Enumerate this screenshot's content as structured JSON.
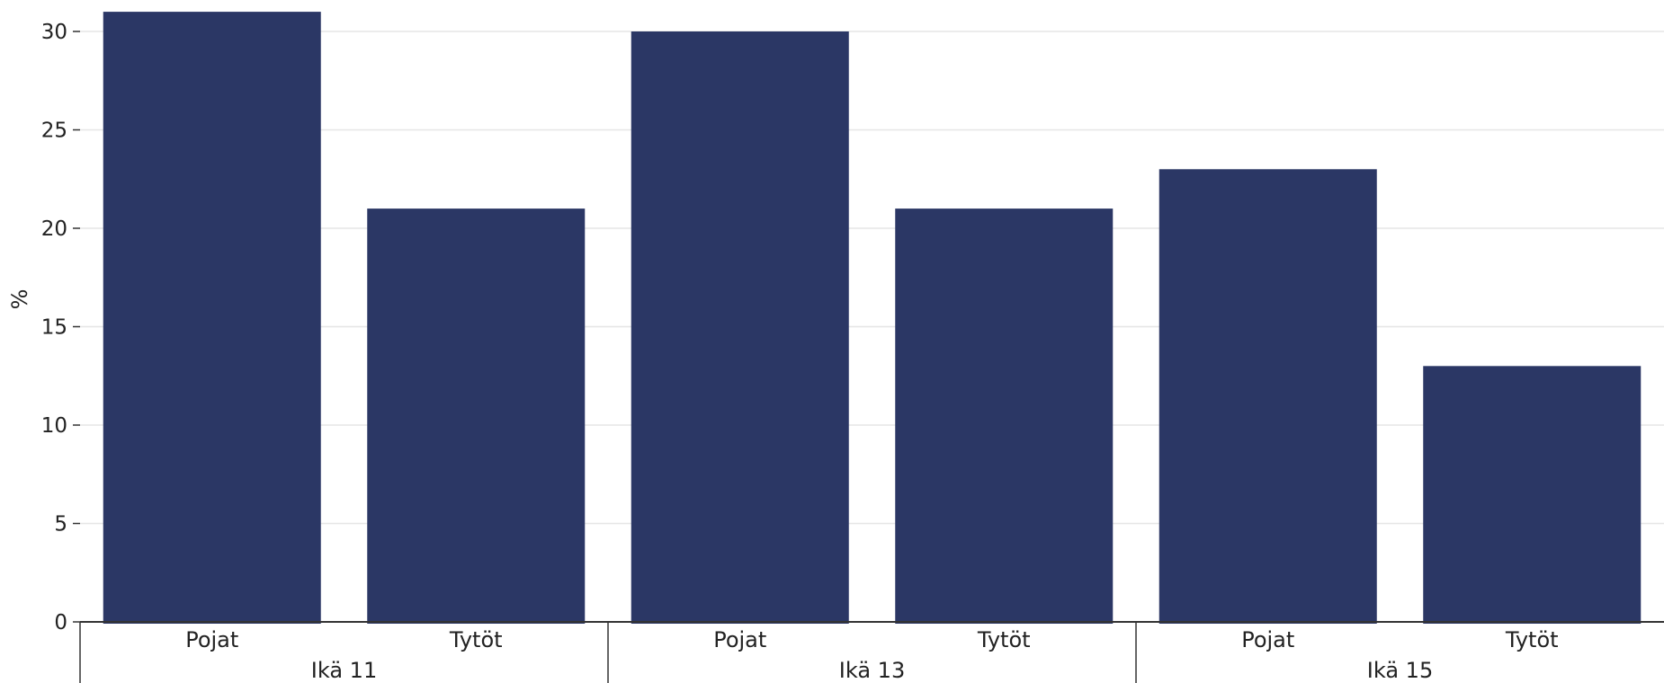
{
  "chart_data": {
    "type": "bar",
    "title": "",
    "xlabel": "",
    "ylabel": "%",
    "ylim": [
      0,
      30
    ],
    "yticks": [
      0,
      5,
      10,
      15,
      20,
      25,
      30
    ],
    "grid": true,
    "bar_color": "#2B3765",
    "groups": [
      {
        "label": "Ikä 11",
        "bars": [
          {
            "label": "Pojat",
            "value": 31
          },
          {
            "label": "Tytöt",
            "value": 21
          }
        ]
      },
      {
        "label": "Ikä 13",
        "bars": [
          {
            "label": "Pojat",
            "value": 30
          },
          {
            "label": "Tytöt",
            "value": 21
          }
        ]
      },
      {
        "label": "Ikä 15",
        "bars": [
          {
            "label": "Pojat",
            "value": 23
          },
          {
            "label": "Tytöt",
            "value": 13
          }
        ]
      }
    ]
  }
}
